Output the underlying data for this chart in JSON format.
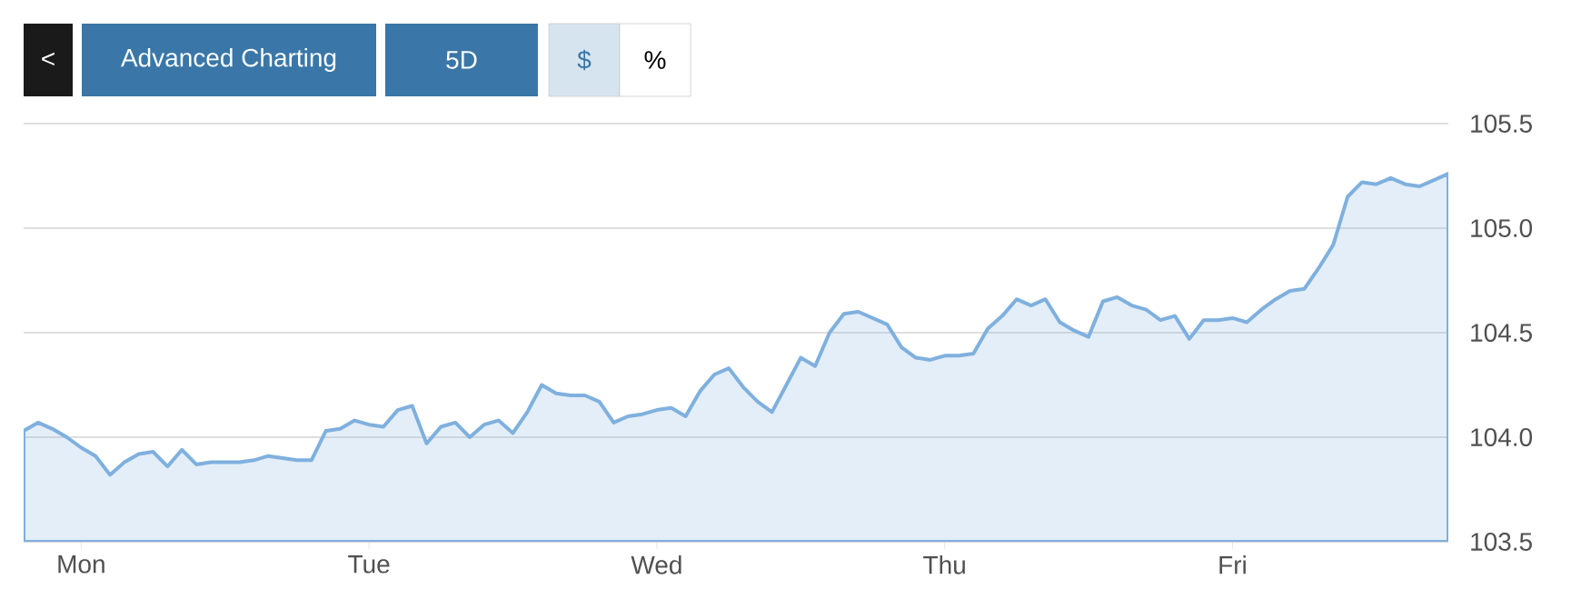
{
  "chart_data": {
    "type": "area",
    "categories": [
      null,
      null,
      null,
      null,
      "Mon",
      null,
      null,
      null,
      null,
      null,
      null,
      null,
      null,
      null,
      null,
      null,
      null,
      null,
      null,
      null,
      null,
      null,
      null,
      null,
      "Tue",
      null,
      null,
      null,
      null,
      null,
      null,
      null,
      null,
      null,
      null,
      null,
      null,
      null,
      null,
      null,
      null,
      null,
      null,
      null,
      "Wed",
      null,
      null,
      null,
      null,
      null,
      null,
      null,
      null,
      null,
      null,
      null,
      null,
      null,
      null,
      null,
      null,
      null,
      null,
      null,
      "Thu",
      null,
      null,
      null,
      null,
      null,
      null,
      null,
      null,
      null,
      null,
      null,
      null,
      null,
      null,
      null,
      null,
      null,
      null,
      null,
      "Fri",
      null,
      null,
      null,
      null,
      null,
      null,
      null,
      null,
      null,
      null,
      null,
      null,
      null,
      null,
      null
    ],
    "series": [
      {
        "color": "#7fb0de",
        "values": [
          104.03,
          104.07,
          104.04,
          104.0,
          103.95,
          103.91,
          103.82,
          103.88,
          103.92,
          103.93,
          103.86,
          103.94,
          103.87,
          103.88,
          103.88,
          103.88,
          103.89,
          103.91,
          103.9,
          103.89,
          103.89,
          104.03,
          104.04,
          104.08,
          104.06,
          104.05,
          104.13,
          104.15,
          103.97,
          104.05,
          104.07,
          104.0,
          104.06,
          104.08,
          104.02,
          104.12,
          104.25,
          104.21,
          104.2,
          104.2,
          104.17,
          104.07,
          104.1,
          104.11,
          104.13,
          104.14,
          104.1,
          104.22,
          104.3,
          104.33,
          104.24,
          104.17,
          104.12,
          104.25,
          104.38,
          104.34,
          104.5,
          104.59,
          104.6,
          104.57,
          104.54,
          104.43,
          104.38,
          104.37,
          104.39,
          104.39,
          104.4,
          104.52,
          104.58,
          104.66,
          104.63,
          104.66,
          104.55,
          104.51,
          104.48,
          104.65,
          104.67,
          104.63,
          104.61,
          104.56,
          104.58,
          104.47,
          104.56,
          104.56,
          104.57,
          104.55,
          104.61,
          104.66,
          104.7,
          104.71,
          104.81,
          104.92,
          105.15,
          105.22,
          105.21,
          105.24,
          105.21,
          105.2,
          105.23,
          105.26
        ]
      }
    ],
    "ylim": [
      103.5,
      105.5
    ],
    "yticks": [
      {
        "value": 103.5,
        "label": "103.5"
      },
      {
        "value": 104,
        "label": "104.0"
      },
      {
        "value": 104.5,
        "label": "104.5"
      },
      {
        "value": 105,
        "label": "105.0"
      },
      {
        "value": 105.5,
        "label": "105.5"
      }
    ],
    "grid": "y",
    "annotations": [
      "<",
      "Advanced Charting",
      "5D",
      "$",
      "%"
    ]
  }
}
